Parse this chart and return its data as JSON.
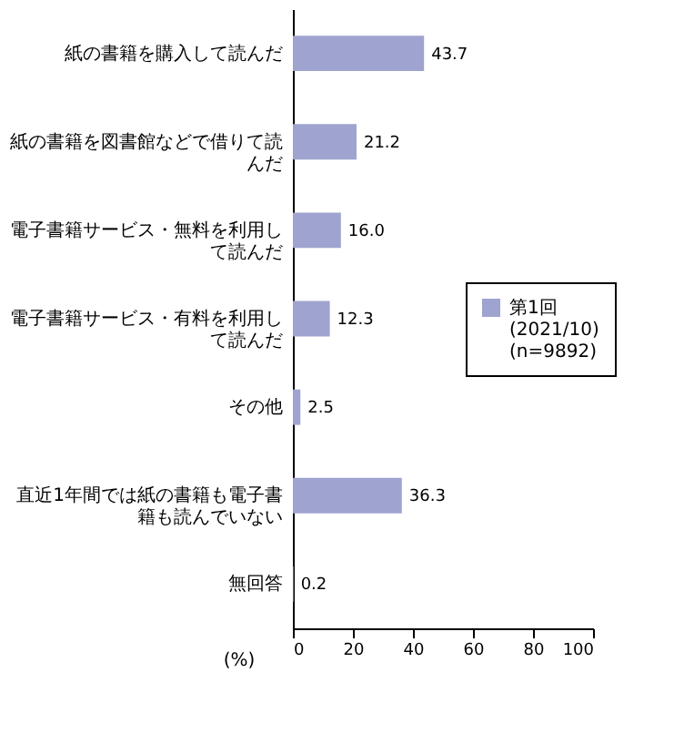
{
  "chart_data": {
    "type": "bar",
    "orientation": "horizontal",
    "categories": [
      "紙の書籍を購入して読んだ",
      "紙の書籍を図書館などで借りて読んだ",
      "電子書籍サービス・無料を利用して読んだ",
      "電子書籍サービス・有料を利用して読んだ",
      "その他",
      "直近1年間では紙の書籍も電子書籍も読んでいない",
      "無回答"
    ],
    "series": [
      {
        "name": "第1回 (2021/10) (n=9892)",
        "color": "#9fa3cf",
        "values": [
          43.7,
          21.2,
          16.0,
          12.3,
          2.5,
          36.3,
          0.2
        ],
        "value_labels": [
          "43.7",
          "21.2",
          "16.0",
          "12.3",
          "2.5",
          "36.3",
          "0.2"
        ]
      }
    ],
    "xlabel": "(%)",
    "xlim": [
      0,
      100
    ],
    "xticks": [
      0,
      20,
      40,
      60,
      80,
      100
    ],
    "legend": "right",
    "grid": false
  }
}
